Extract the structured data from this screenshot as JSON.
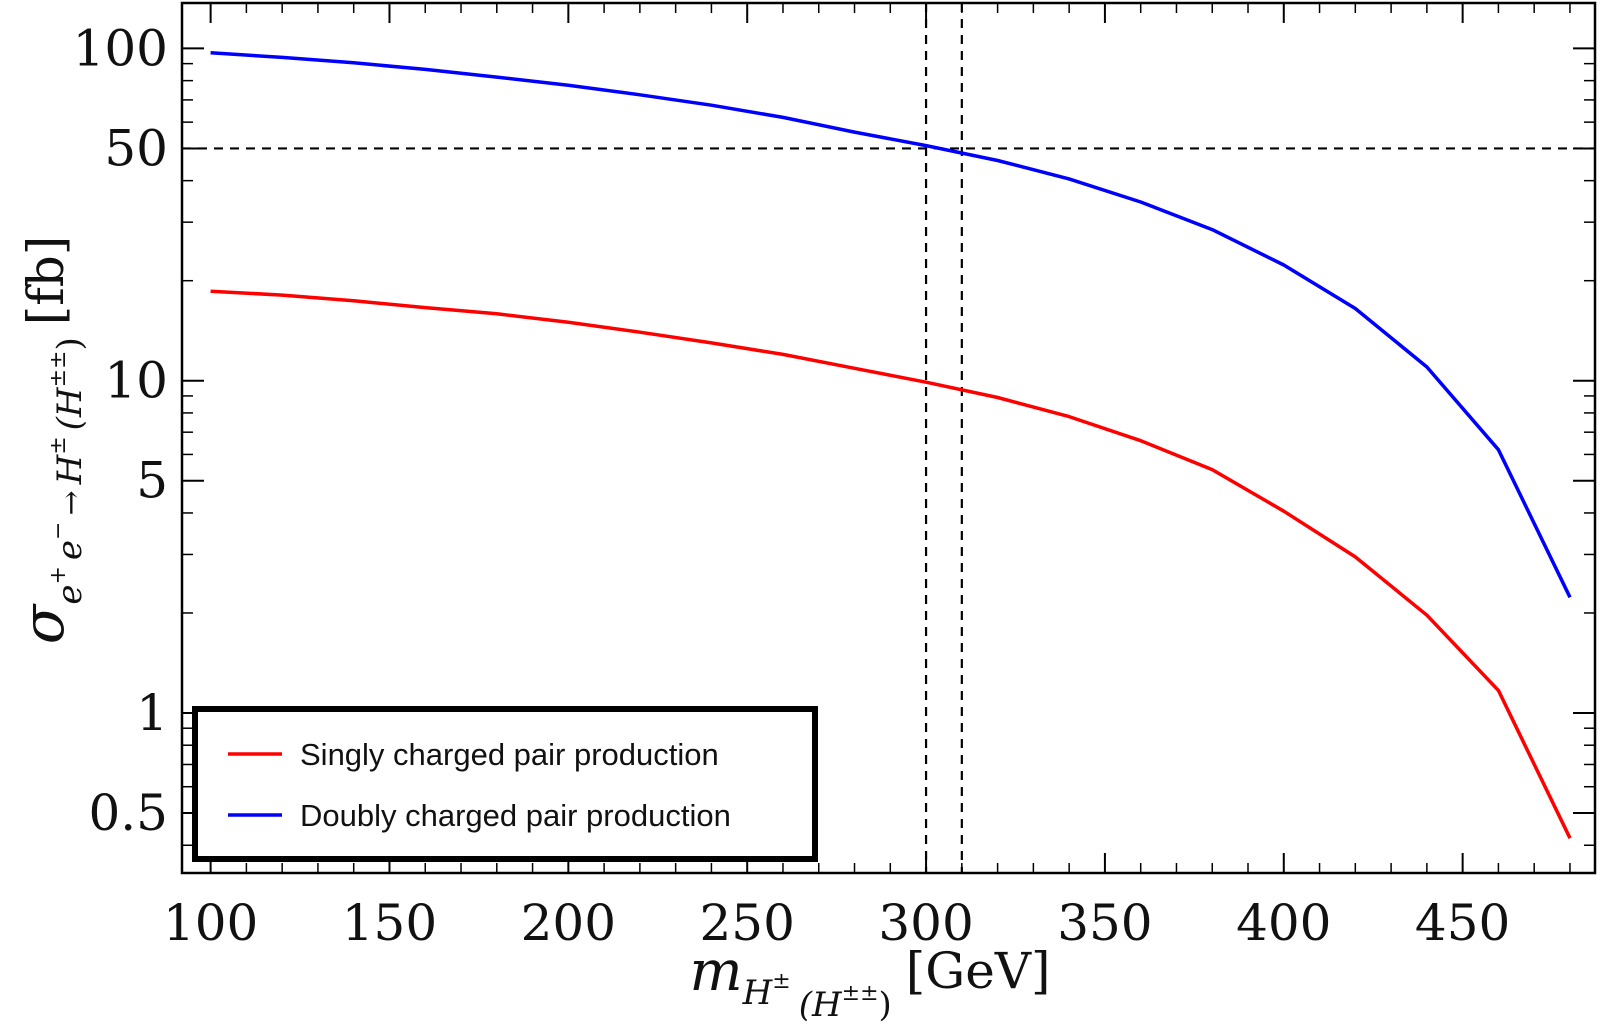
{
  "chart_data": {
    "type": "line",
    "title": "",
    "xlabel": {
      "symbol": "m",
      "subscript": "H",
      "sub_sup": "±",
      "paren_sub": "(H",
      "paren_sup": "±±",
      "paren_close": ")",
      "unit": "[GeV]"
    },
    "ylabel": {
      "symbol": "σ",
      "sub_e1": "e",
      "sup_plus": "+",
      "sub_e2": "e",
      "sup_minus": "−",
      "arrow": "→",
      "sub_H": "H",
      "sup_pm": "±",
      "paren_open": "(H",
      "sup_pmpm": "±±",
      "paren_close": ")",
      "unit": "[fb]"
    },
    "x_scale": "linear",
    "y_scale": "log",
    "xlim": [
      92,
      487
    ],
    "ylim": [
      0.33,
      137
    ],
    "x_ticks": [
      100,
      150,
      200,
      250,
      300,
      350,
      400,
      450
    ],
    "x_tick_labels": [
      "100",
      "150",
      "200",
      "250",
      "300",
      "350",
      "400",
      "450"
    ],
    "y_ticks": [
      0.5,
      1,
      5,
      10,
      50,
      100
    ],
    "y_tick_labels": [
      "0.5",
      "1",
      "5",
      "10",
      "50",
      "100"
    ],
    "y_minor_ticks": [
      0.4,
      0.6,
      0.7,
      0.8,
      0.9,
      2,
      3,
      4,
      6,
      7,
      8,
      9,
      20,
      30,
      40,
      60,
      70,
      80,
      90
    ],
    "reference_lines": [
      {
        "orientation": "horizontal",
        "value": 50,
        "style": "dashed"
      },
      {
        "orientation": "vertical",
        "value": 300,
        "style": "dashed"
      },
      {
        "orientation": "vertical",
        "value": 310,
        "style": "dashed"
      }
    ],
    "series": [
      {
        "name": "Singly charged pair production",
        "color": "#ff0000",
        "x": [
          100,
          120,
          140,
          160,
          180,
          200,
          220,
          240,
          260,
          280,
          300,
          320,
          340,
          360,
          380,
          400,
          420,
          440,
          460,
          480
        ],
        "values": [
          18.6,
          18.1,
          17.4,
          16.6,
          15.9,
          15.0,
          14.0,
          13.0,
          12.0,
          10.9,
          9.9,
          8.9,
          7.8,
          6.6,
          5.4,
          4.05,
          2.95,
          1.97,
          1.17,
          0.42
        ]
      },
      {
        "name": "Doubly charged pair production",
        "color": "#0000ff",
        "x": [
          100,
          120,
          140,
          160,
          180,
          200,
          220,
          240,
          260,
          280,
          300,
          320,
          340,
          360,
          380,
          400,
          420,
          440,
          460,
          480
        ],
        "values": [
          97,
          94,
          90.5,
          86.5,
          82,
          77.5,
          72.5,
          67.5,
          62,
          56,
          51,
          46,
          40.5,
          34.5,
          28.5,
          22.3,
          16.5,
          11,
          6.2,
          2.23
        ]
      }
    ],
    "legend": {
      "position": "bottom-left",
      "entries": [
        "Singly charged pair production",
        "Doubly charged pair production"
      ]
    }
  }
}
